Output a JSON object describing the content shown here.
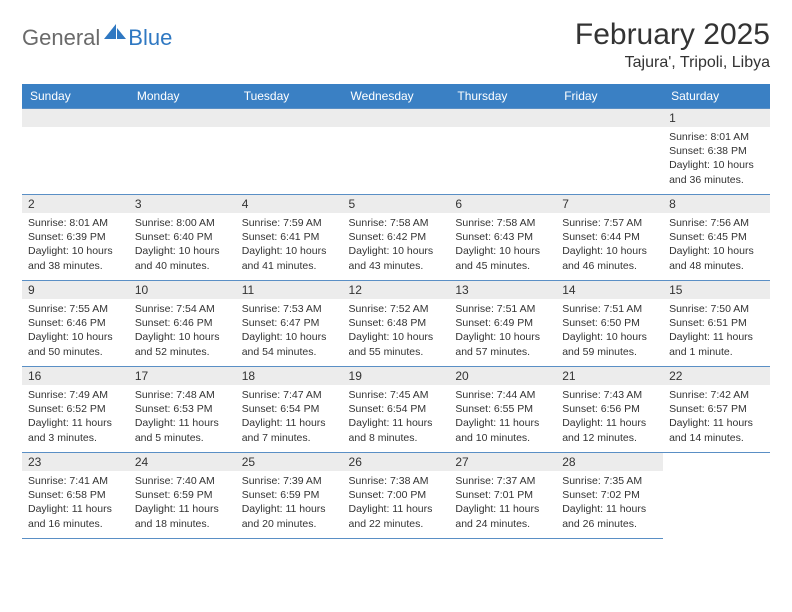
{
  "brand": {
    "text_general": "General",
    "text_blue": "Blue",
    "logo_color": "#2f78c2"
  },
  "header": {
    "month_title": "February 2025",
    "location": "Tajura', Tripoli, Libya"
  },
  "colors": {
    "header_bg": "#3a80c4",
    "header_text": "#ffffff",
    "daynum_bg": "#ececec",
    "border": "#5a8fc5",
    "text": "#333333"
  },
  "weekdays": [
    "Sunday",
    "Monday",
    "Tuesday",
    "Wednesday",
    "Thursday",
    "Friday",
    "Saturday"
  ],
  "weeks": [
    [
      {
        "num": "",
        "sunrise": "",
        "sunset": "",
        "daylight": ""
      },
      {
        "num": "",
        "sunrise": "",
        "sunset": "",
        "daylight": ""
      },
      {
        "num": "",
        "sunrise": "",
        "sunset": "",
        "daylight": ""
      },
      {
        "num": "",
        "sunrise": "",
        "sunset": "",
        "daylight": ""
      },
      {
        "num": "",
        "sunrise": "",
        "sunset": "",
        "daylight": ""
      },
      {
        "num": "",
        "sunrise": "",
        "sunset": "",
        "daylight": ""
      },
      {
        "num": "1",
        "sunrise": "Sunrise: 8:01 AM",
        "sunset": "Sunset: 6:38 PM",
        "daylight": "Daylight: 10 hours and 36 minutes."
      }
    ],
    [
      {
        "num": "2",
        "sunrise": "Sunrise: 8:01 AM",
        "sunset": "Sunset: 6:39 PM",
        "daylight": "Daylight: 10 hours and 38 minutes."
      },
      {
        "num": "3",
        "sunrise": "Sunrise: 8:00 AM",
        "sunset": "Sunset: 6:40 PM",
        "daylight": "Daylight: 10 hours and 40 minutes."
      },
      {
        "num": "4",
        "sunrise": "Sunrise: 7:59 AM",
        "sunset": "Sunset: 6:41 PM",
        "daylight": "Daylight: 10 hours and 41 minutes."
      },
      {
        "num": "5",
        "sunrise": "Sunrise: 7:58 AM",
        "sunset": "Sunset: 6:42 PM",
        "daylight": "Daylight: 10 hours and 43 minutes."
      },
      {
        "num": "6",
        "sunrise": "Sunrise: 7:58 AM",
        "sunset": "Sunset: 6:43 PM",
        "daylight": "Daylight: 10 hours and 45 minutes."
      },
      {
        "num": "7",
        "sunrise": "Sunrise: 7:57 AM",
        "sunset": "Sunset: 6:44 PM",
        "daylight": "Daylight: 10 hours and 46 minutes."
      },
      {
        "num": "8",
        "sunrise": "Sunrise: 7:56 AM",
        "sunset": "Sunset: 6:45 PM",
        "daylight": "Daylight: 10 hours and 48 minutes."
      }
    ],
    [
      {
        "num": "9",
        "sunrise": "Sunrise: 7:55 AM",
        "sunset": "Sunset: 6:46 PM",
        "daylight": "Daylight: 10 hours and 50 minutes."
      },
      {
        "num": "10",
        "sunrise": "Sunrise: 7:54 AM",
        "sunset": "Sunset: 6:46 PM",
        "daylight": "Daylight: 10 hours and 52 minutes."
      },
      {
        "num": "11",
        "sunrise": "Sunrise: 7:53 AM",
        "sunset": "Sunset: 6:47 PM",
        "daylight": "Daylight: 10 hours and 54 minutes."
      },
      {
        "num": "12",
        "sunrise": "Sunrise: 7:52 AM",
        "sunset": "Sunset: 6:48 PM",
        "daylight": "Daylight: 10 hours and 55 minutes."
      },
      {
        "num": "13",
        "sunrise": "Sunrise: 7:51 AM",
        "sunset": "Sunset: 6:49 PM",
        "daylight": "Daylight: 10 hours and 57 minutes."
      },
      {
        "num": "14",
        "sunrise": "Sunrise: 7:51 AM",
        "sunset": "Sunset: 6:50 PM",
        "daylight": "Daylight: 10 hours and 59 minutes."
      },
      {
        "num": "15",
        "sunrise": "Sunrise: 7:50 AM",
        "sunset": "Sunset: 6:51 PM",
        "daylight": "Daylight: 11 hours and 1 minute."
      }
    ],
    [
      {
        "num": "16",
        "sunrise": "Sunrise: 7:49 AM",
        "sunset": "Sunset: 6:52 PM",
        "daylight": "Daylight: 11 hours and 3 minutes."
      },
      {
        "num": "17",
        "sunrise": "Sunrise: 7:48 AM",
        "sunset": "Sunset: 6:53 PM",
        "daylight": "Daylight: 11 hours and 5 minutes."
      },
      {
        "num": "18",
        "sunrise": "Sunrise: 7:47 AM",
        "sunset": "Sunset: 6:54 PM",
        "daylight": "Daylight: 11 hours and 7 minutes."
      },
      {
        "num": "19",
        "sunrise": "Sunrise: 7:45 AM",
        "sunset": "Sunset: 6:54 PM",
        "daylight": "Daylight: 11 hours and 8 minutes."
      },
      {
        "num": "20",
        "sunrise": "Sunrise: 7:44 AM",
        "sunset": "Sunset: 6:55 PM",
        "daylight": "Daylight: 11 hours and 10 minutes."
      },
      {
        "num": "21",
        "sunrise": "Sunrise: 7:43 AM",
        "sunset": "Sunset: 6:56 PM",
        "daylight": "Daylight: 11 hours and 12 minutes."
      },
      {
        "num": "22",
        "sunrise": "Sunrise: 7:42 AM",
        "sunset": "Sunset: 6:57 PM",
        "daylight": "Daylight: 11 hours and 14 minutes."
      }
    ],
    [
      {
        "num": "23",
        "sunrise": "Sunrise: 7:41 AM",
        "sunset": "Sunset: 6:58 PM",
        "daylight": "Daylight: 11 hours and 16 minutes."
      },
      {
        "num": "24",
        "sunrise": "Sunrise: 7:40 AM",
        "sunset": "Sunset: 6:59 PM",
        "daylight": "Daylight: 11 hours and 18 minutes."
      },
      {
        "num": "25",
        "sunrise": "Sunrise: 7:39 AM",
        "sunset": "Sunset: 6:59 PM",
        "daylight": "Daylight: 11 hours and 20 minutes."
      },
      {
        "num": "26",
        "sunrise": "Sunrise: 7:38 AM",
        "sunset": "Sunset: 7:00 PM",
        "daylight": "Daylight: 11 hours and 22 minutes."
      },
      {
        "num": "27",
        "sunrise": "Sunrise: 7:37 AM",
        "sunset": "Sunset: 7:01 PM",
        "daylight": "Daylight: 11 hours and 24 minutes."
      },
      {
        "num": "28",
        "sunrise": "Sunrise: 7:35 AM",
        "sunset": "Sunset: 7:02 PM",
        "daylight": "Daylight: 11 hours and 26 minutes."
      },
      {
        "num": "",
        "sunrise": "",
        "sunset": "",
        "daylight": ""
      }
    ]
  ]
}
